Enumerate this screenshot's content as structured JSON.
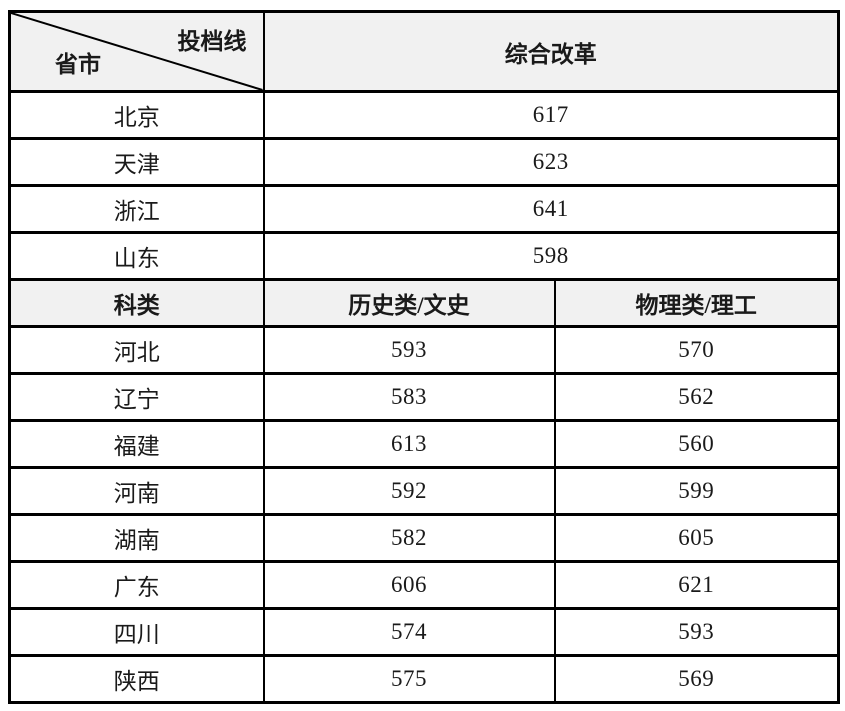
{
  "colors": {
    "border": "#000000",
    "header_bg": "#f1f1f1",
    "text": "#1a1a1a"
  },
  "table": {
    "corner": {
      "top_right_label": "投档线",
      "bottom_left_label": "省市"
    },
    "top_header": "综合改革",
    "comprehensive_rows": [
      {
        "province": "北京",
        "score": "617"
      },
      {
        "province": "天津",
        "score": "623"
      },
      {
        "province": "浙江",
        "score": "641"
      },
      {
        "province": "山东",
        "score": "598"
      }
    ],
    "subheader": {
      "category": "科类",
      "history": "历史类/文史",
      "physics": "物理类/理工"
    },
    "category_rows": [
      {
        "province": "河北",
        "history": "593",
        "physics": "570"
      },
      {
        "province": "辽宁",
        "history": "583",
        "physics": "562"
      },
      {
        "province": "福建",
        "history": "613",
        "physics": "560"
      },
      {
        "province": "河南",
        "history": "592",
        "physics": "599"
      },
      {
        "province": "湖南",
        "history": "582",
        "physics": "605"
      },
      {
        "province": "广东",
        "history": "606",
        "physics": "621"
      },
      {
        "province": "四川",
        "history": "574",
        "physics": "593"
      },
      {
        "province": "陕西",
        "history": "575",
        "physics": "569"
      }
    ]
  },
  "chart_data": {
    "type": "table",
    "title": "投档线 (Admission score lines by province)",
    "sections": [
      {
        "columns": [
          "省市",
          "综合改革"
        ],
        "rows": [
          [
            "北京",
            617
          ],
          [
            "天津",
            623
          ],
          [
            "浙江",
            641
          ],
          [
            "山东",
            598
          ]
        ]
      },
      {
        "columns": [
          "科类",
          "历史类/文史",
          "物理类/理工"
        ],
        "rows": [
          [
            "河北",
            593,
            570
          ],
          [
            "辽宁",
            583,
            562
          ],
          [
            "福建",
            613,
            560
          ],
          [
            "河南",
            592,
            599
          ],
          [
            "湖南",
            582,
            605
          ],
          [
            "广东",
            606,
            621
          ],
          [
            "四川",
            574,
            593
          ],
          [
            "陕西",
            575,
            569
          ]
        ]
      }
    ]
  }
}
